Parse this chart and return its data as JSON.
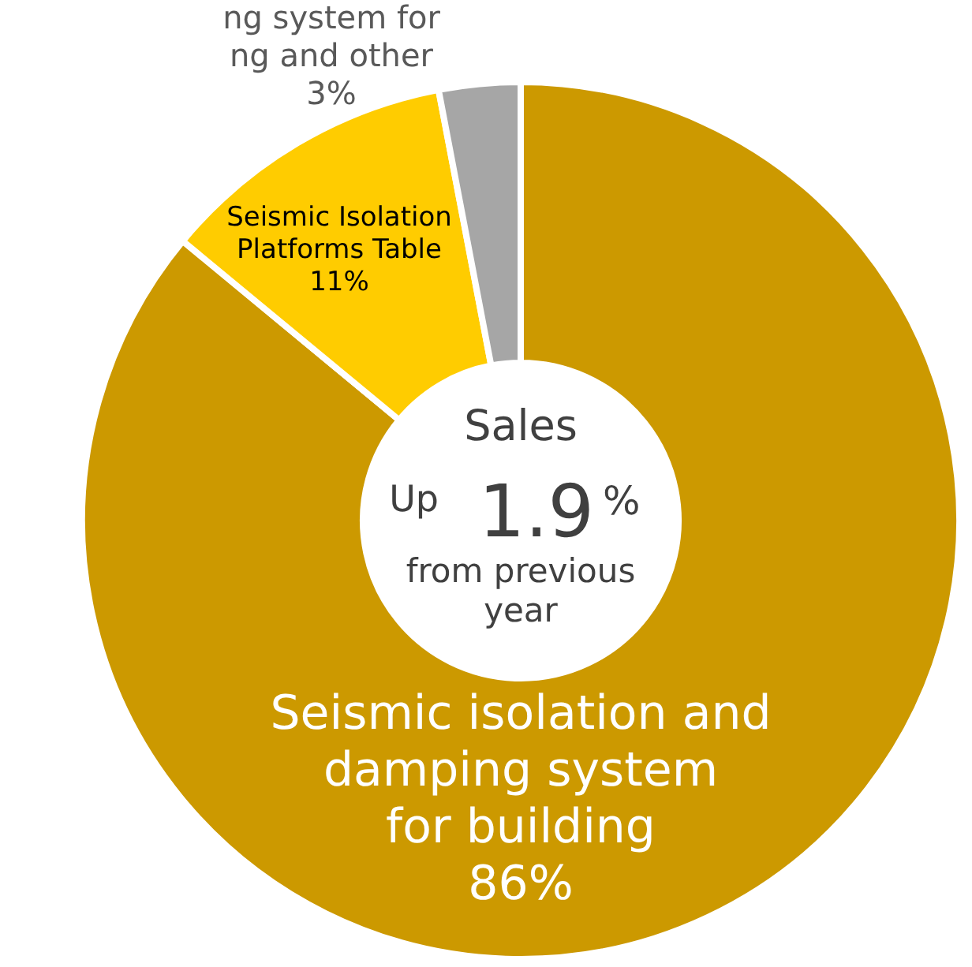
{
  "chart_data": {
    "type": "donut",
    "categories": [
      "Seismic isolation and\ndamping system\nfor building",
      "Seismic Isolation\nPlatforms Table",
      "ng system for\nng and other"
    ],
    "values": [
      86,
      11,
      3
    ],
    "colors": [
      "#cc9900",
      "#ffcc00",
      "#a6a6a6"
    ],
    "value_labels": [
      "86%",
      "11%",
      "3%"
    ],
    "annotations": [
      "Sales",
      "Up",
      "1.9",
      "%",
      "from previous\nyear"
    ],
    "legend": false
  }
}
